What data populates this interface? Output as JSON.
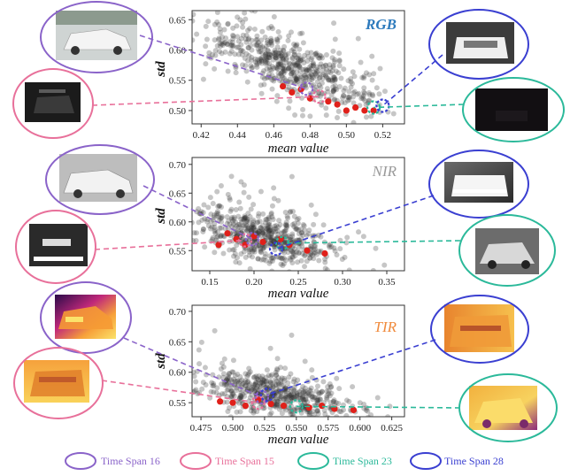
{
  "chart_data": [
    {
      "type": "scatter",
      "title": "RGB",
      "title_color": "#2e7bbd",
      "xlabel": "mean value",
      "ylabel": "std",
      "xlim": [
        0.415,
        0.532
      ],
      "ylim": [
        0.478,
        0.665
      ],
      "xticks": [
        0.42,
        0.44,
        0.46,
        0.48,
        0.5,
        0.52
      ],
      "xtick_labels": [
        "0.42",
        "0.44",
        "0.46",
        "0.48",
        "0.50",
        "0.52"
      ],
      "yticks": [
        0.5,
        0.55,
        0.6,
        0.65
      ],
      "ytick_labels": [
        "0.50",
        "0.55",
        "0.60",
        "0.65"
      ],
      "cloud": {
        "center": [
          0.468,
          0.575
        ],
        "slope": -1.1,
        "spread_x": 0.022,
        "spread_y": 0.022,
        "count": 600
      },
      "highlights": [
        {
          "span": "Time Span 16",
          "x": 0.478,
          "y": 0.536
        },
        {
          "span": "Time Span 15",
          "x": 0.485,
          "y": 0.523
        },
        {
          "span": "Time Span 23",
          "x": 0.515,
          "y": 0.505
        },
        {
          "span": "Time Span 28",
          "x": 0.52,
          "y": 0.508
        }
      ],
      "red_points": [
        [
          0.47,
          0.53
        ],
        [
          0.48,
          0.52
        ],
        [
          0.49,
          0.515
        ],
        [
          0.5,
          0.5
        ],
        [
          0.505,
          0.505
        ],
        [
          0.51,
          0.5
        ],
        [
          0.495,
          0.51
        ],
        [
          0.475,
          0.535
        ],
        [
          0.515,
          0.5
        ],
        [
          0.465,
          0.54
        ]
      ]
    },
    {
      "type": "scatter",
      "title": "NIR",
      "title_color": "#9a9a9a",
      "xlabel": "mean value",
      "ylabel": "std",
      "xlim": [
        0.13,
        0.37
      ],
      "ylim": [
        0.515,
        0.712
      ],
      "xticks": [
        0.15,
        0.2,
        0.25,
        0.3,
        0.35
      ],
      "xtick_labels": [
        "0.15",
        "0.20",
        "0.25",
        "0.30",
        "0.35"
      ],
      "yticks": [
        0.55,
        0.6,
        0.65,
        0.7
      ],
      "ytick_labels": [
        "0.55",
        "0.60",
        "0.65",
        "0.70"
      ],
      "cloud": {
        "center": [
          0.21,
          0.575
        ],
        "slope": -0.35,
        "spread_x": 0.035,
        "spread_y": 0.022,
        "count": 600
      },
      "highlights": [
        {
          "span": "Time Span 16",
          "x": 0.198,
          "y": 0.57
        },
        {
          "span": "Time Span 15",
          "x": 0.19,
          "y": 0.568
        },
        {
          "span": "Time Span 23",
          "x": 0.232,
          "y": 0.563
        },
        {
          "span": "Time Span 28",
          "x": 0.225,
          "y": 0.553
        }
      ],
      "red_points": [
        [
          0.17,
          0.58
        ],
        [
          0.18,
          0.57
        ],
        [
          0.2,
          0.575
        ],
        [
          0.21,
          0.565
        ],
        [
          0.24,
          0.56
        ],
        [
          0.26,
          0.55
        ],
        [
          0.19,
          0.56
        ],
        [
          0.23,
          0.57
        ],
        [
          0.28,
          0.545
        ],
        [
          0.16,
          0.56
        ]
      ]
    },
    {
      "type": "scatter",
      "title": "TIR",
      "title_color": "#f08a3c",
      "xlabel": "mean value",
      "ylabel": "std",
      "xlim": [
        0.468,
        0.635
      ],
      "ylim": [
        0.527,
        0.71
      ],
      "xticks": [
        0.475,
        0.5,
        0.525,
        0.55,
        0.575,
        0.6,
        0.625
      ],
      "xtick_labels": [
        "0.475",
        "0.500",
        "0.525",
        "0.550",
        "0.575",
        "0.600",
        "0.625"
      ],
      "yticks": [
        0.55,
        0.6,
        0.65,
        0.7
      ],
      "ytick_labels": [
        "0.55",
        "0.60",
        "0.65",
        "0.70"
      ],
      "cloud": {
        "center": [
          0.535,
          0.562
        ],
        "slope": -0.4,
        "spread_x": 0.028,
        "spread_y": 0.018,
        "count": 600
      },
      "highlights": [
        {
          "span": "Time Span 16",
          "x": 0.523,
          "y": 0.559
        },
        {
          "span": "Time Span 15",
          "x": 0.52,
          "y": 0.55
        },
        {
          "span": "Time Span 23",
          "x": 0.55,
          "y": 0.544
        },
        {
          "span": "Time Span 28",
          "x": 0.527,
          "y": 0.563
        }
      ],
      "red_points": [
        [
          0.5,
          0.55
        ],
        [
          0.51,
          0.545
        ],
        [
          0.53,
          0.548
        ],
        [
          0.54,
          0.545
        ],
        [
          0.56,
          0.542
        ],
        [
          0.58,
          0.54
        ],
        [
          0.52,
          0.555
        ],
        [
          0.49,
          0.552
        ],
        [
          0.57,
          0.545
        ],
        [
          0.595,
          0.538
        ]
      ]
    }
  ],
  "legend": [
    {
      "label": "Time Span 16",
      "color": "#8a63c9"
    },
    {
      "label": "Time Span 15",
      "color": "#e8709a"
    },
    {
      "label": "Time Span 23",
      "color": "#2bb99a"
    },
    {
      "label": "Time Span 28",
      "color": "#3a3fd1"
    }
  ]
}
